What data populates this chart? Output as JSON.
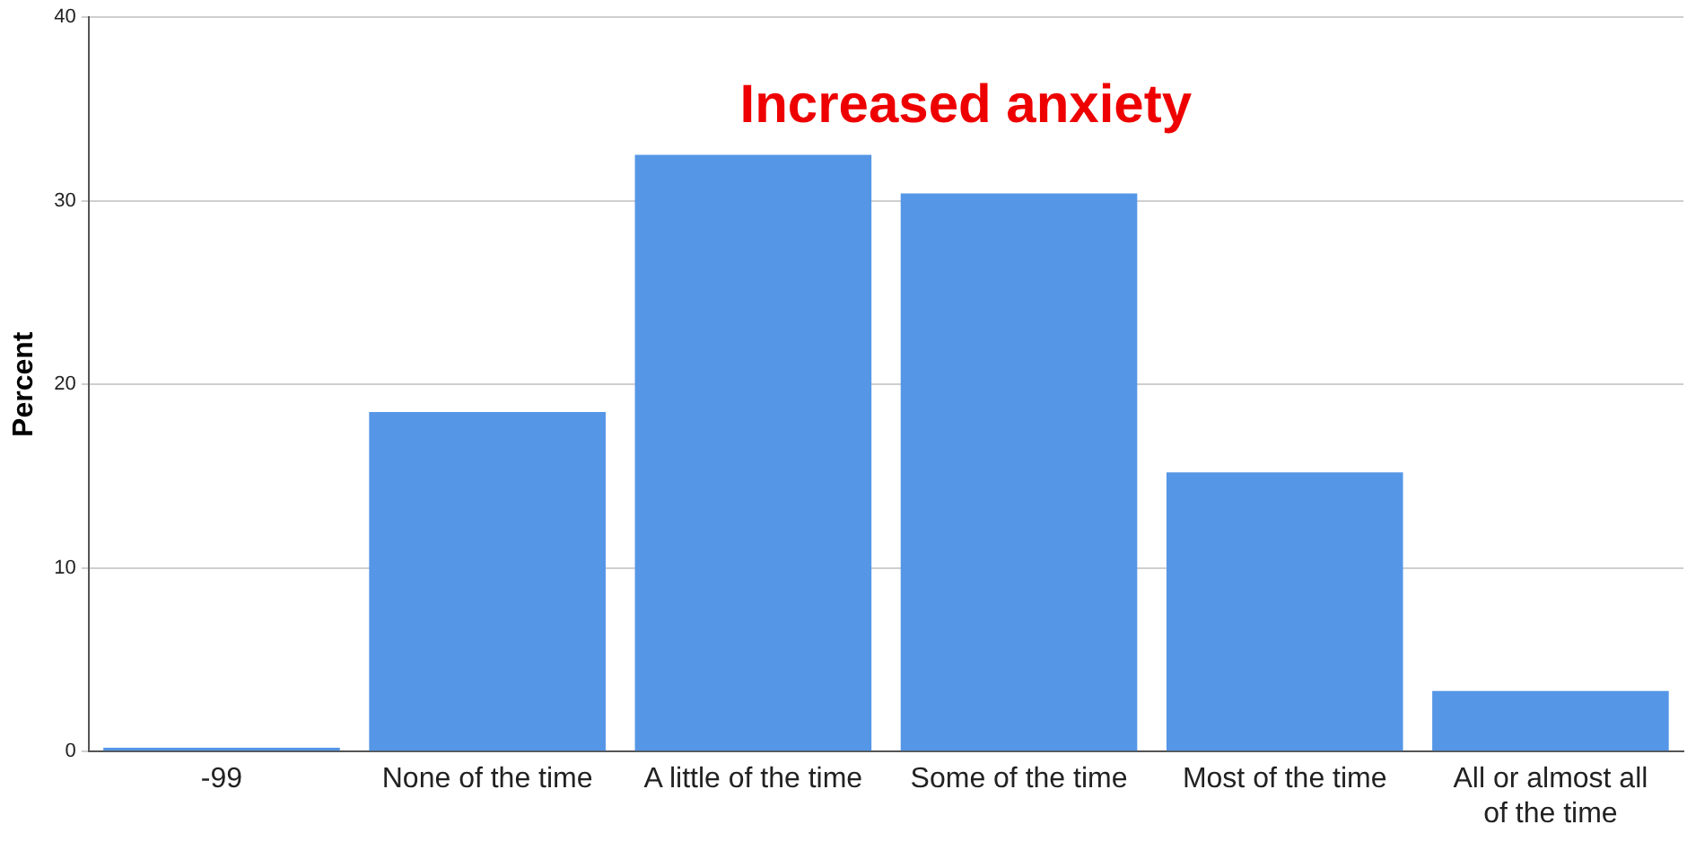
{
  "chart_data": {
    "type": "bar",
    "title": "Increased anxiety",
    "ylabel": "Percent",
    "categories": [
      "-99",
      "None of the time",
      "A little of the time",
      "Some of the time",
      "Most of the time",
      "All or almost all of the time"
    ],
    "values": [
      0.2,
      18.5,
      32.5,
      30.4,
      15.2,
      3.3
    ],
    "color": "#5596e6",
    "ylim": [
      0,
      40
    ],
    "yticks": [
      0,
      10,
      20,
      30,
      40
    ],
    "grid": "y",
    "legend": false
  }
}
